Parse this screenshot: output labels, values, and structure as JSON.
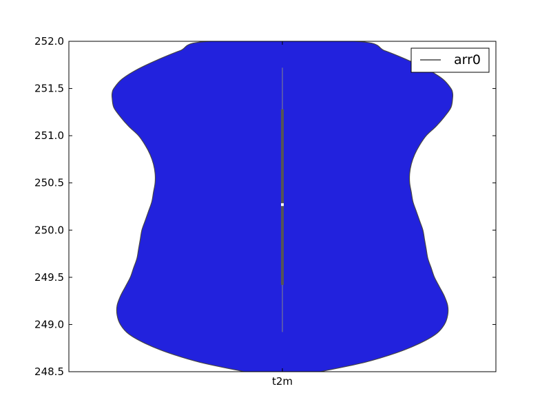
{
  "chart_data": {
    "type": "violin",
    "categories": [
      "t2m"
    ],
    "ylim": [
      248.5,
      252.0
    ],
    "yticks": [
      "248.5",
      "249.0",
      "249.5",
      "250.0",
      "250.5",
      "251.0",
      "251.5",
      "252.0"
    ],
    "ytick_values": [
      248.5,
      249.0,
      249.5,
      250.0,
      250.5,
      251.0,
      251.5,
      252.0
    ],
    "legend": {
      "labels": [
        "arr0"
      ],
      "placement": "top-right"
    },
    "grid": false,
    "fill_color": "#2222dd",
    "edge_color": "#444444",
    "box_color": "#555555",
    "whisker_color": "#888888",
    "median_color": "#ffffff",
    "series": [
      {
        "category": "t2m",
        "box": {
          "whisker_low": 248.92,
          "q1": 249.42,
          "median": 250.27,
          "q3": 251.28,
          "whisker_high": 251.72
        },
        "density_profile": [
          [
            248.5,
            0.23
          ],
          [
            248.6,
            0.5
          ],
          [
            248.7,
            0.69
          ],
          [
            248.8,
            0.83
          ],
          [
            248.9,
            0.93
          ],
          [
            249.0,
            0.98
          ],
          [
            249.1,
            1.0
          ],
          [
            249.2,
            1.0
          ],
          [
            249.3,
            0.98
          ],
          [
            249.4,
            0.95
          ],
          [
            249.5,
            0.92
          ],
          [
            249.6,
            0.9
          ],
          [
            249.7,
            0.88
          ],
          [
            249.8,
            0.87
          ],
          [
            249.9,
            0.86
          ],
          [
            250.0,
            0.85
          ],
          [
            250.1,
            0.83
          ],
          [
            250.2,
            0.81
          ],
          [
            250.3,
            0.79
          ],
          [
            250.4,
            0.78
          ],
          [
            250.5,
            0.77
          ],
          [
            250.6,
            0.77
          ],
          [
            250.7,
            0.78
          ],
          [
            250.8,
            0.8
          ],
          [
            250.9,
            0.83
          ],
          [
            251.0,
            0.87
          ],
          [
            251.1,
            0.93
          ],
          [
            251.2,
            0.98
          ],
          [
            251.3,
            1.02
          ],
          [
            251.4,
            1.03
          ],
          [
            251.45,
            1.03
          ],
          [
            251.5,
            1.02
          ],
          [
            251.6,
            0.97
          ],
          [
            251.7,
            0.88
          ],
          [
            251.8,
            0.76
          ],
          [
            251.9,
            0.62
          ],
          [
            252.0,
            0.44
          ]
        ]
      }
    ]
  }
}
